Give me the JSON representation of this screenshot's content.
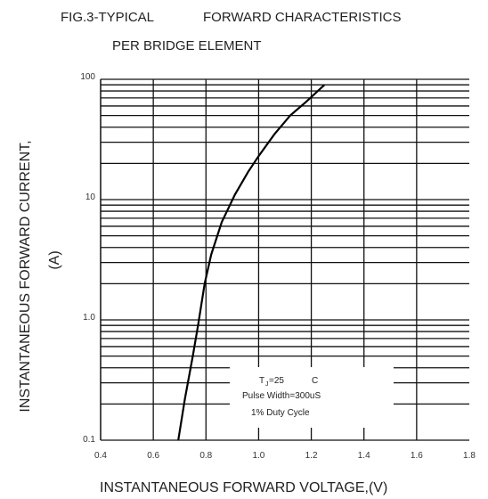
{
  "chart_data": {
    "type": "line",
    "title_line1": "FIG.3-TYPICAL",
    "title_line2": "FORWARD CHARACTERISTICS",
    "title_line3": "PER BRIDGE ELEMENT",
    "xlabel": "INSTANTANEOUS FORWARD VOLTAGE,(V)",
    "ylabel_line1": "INSTANTANEOUS FORWARD CURRENT,",
    "ylabel_line2": "(A)",
    "x_ticks": [
      "0.4",
      "0.6",
      "0.8",
      "1.0",
      "1.2",
      "1.4",
      "1.6",
      "1.8"
    ],
    "y_ticks": [
      "0.1",
      "1.0",
      "10",
      "100"
    ],
    "xlim": [
      0.4,
      1.8
    ],
    "ylim": [
      0.1,
      100
    ],
    "y_scale": "log",
    "grid": true,
    "series": [
      {
        "x": [
          0.695,
          0.72,
          0.75,
          0.77,
          0.795,
          0.82,
          0.86,
          0.91,
          0.96,
          1.0,
          1.06,
          1.12,
          1.18,
          1.25
        ],
        "y": [
          0.1,
          0.22,
          0.5,
          0.9,
          2.0,
          3.5,
          6.5,
          11,
          17,
          23,
          35,
          50,
          65,
          90
        ]
      }
    ],
    "annotation": {
      "line1_T": "T",
      "line1_sub": "J",
      "line1_rest": "=25",
      "line1_unit": "C",
      "line2": "Pulse Width=300uS",
      "line3": "1% Duty Cycle"
    }
  }
}
